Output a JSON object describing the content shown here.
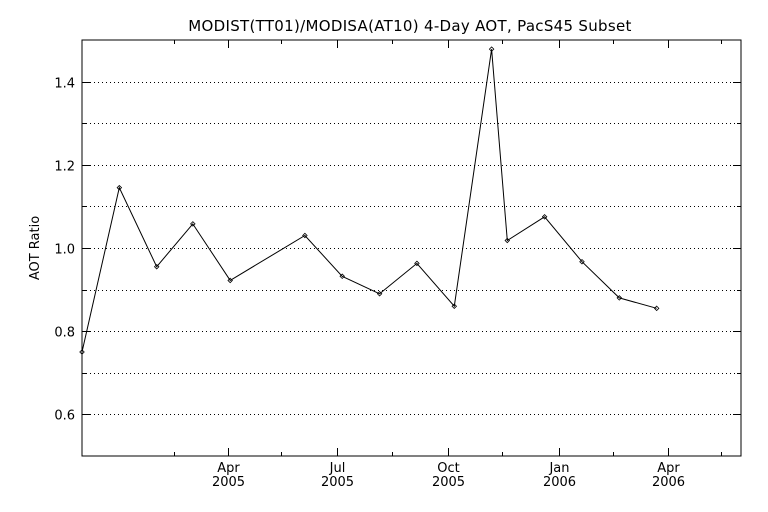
{
  "chart_data": {
    "type": "line",
    "title": "MODIST(TT01)/MODISA(AT10) 4-Day AOT, PacS45 Subset",
    "xlabel": "",
    "ylabel": "AOT Ratio",
    "xlim": [
      "2004-12-01",
      "2006-06-01"
    ],
    "ylim": [
      0.5,
      1.5
    ],
    "yticks": [
      0.6,
      0.8,
      1.0,
      1.2,
      1.4
    ],
    "ytick_labels": [
      "0.6",
      "0.8",
      "1.0",
      "1.2",
      "1.4"
    ],
    "ygrid": [
      0.6,
      0.7,
      0.8,
      0.9,
      1.0,
      1.1,
      1.2,
      1.3,
      1.4
    ],
    "grid": "horizontal dotted",
    "xticks": [
      {
        "date": "2005-04-01",
        "label": "Apr",
        "year": "2005"
      },
      {
        "date": "2005-07-01",
        "label": "Jul",
        "year": "2005"
      },
      {
        "date": "2005-10-01",
        "label": "Oct",
        "year": "2005"
      },
      {
        "date": "2006-01-01",
        "label": "Jan",
        "year": "2006"
      },
      {
        "date": "2006-04-01",
        "label": "Apr",
        "year": "2006"
      }
    ],
    "xminor": [
      "2005-02-15",
      "2005-05-15",
      "2005-08-15",
      "2005-11-15",
      "2006-02-15",
      "2006-05-15"
    ],
    "series": [
      {
        "color": "#000000",
        "marker": "diamond",
        "points": [
          {
            "x": "2004-12-01",
            "y": 0.75
          },
          {
            "x": "2005-01-01",
            "y": 1.145
          },
          {
            "x": "2005-02-01",
            "y": 0.955
          },
          {
            "x": "2005-03-03",
            "y": 1.058
          },
          {
            "x": "2005-04-03",
            "y": 0.922
          },
          {
            "x": "2005-06-04",
            "y": 1.03
          },
          {
            "x": "2005-07-05",
            "y": 0.932
          },
          {
            "x": "2005-08-05",
            "y": 0.89
          },
          {
            "x": "2005-09-05",
            "y": 0.963
          },
          {
            "x": "2005-10-06",
            "y": 0.86
          },
          {
            "x": "2005-11-06",
            "y": 1.478
          },
          {
            "x": "2005-11-19",
            "y": 1.018
          },
          {
            "x": "2005-12-20",
            "y": 1.075
          },
          {
            "x": "2006-01-20",
            "y": 0.967
          },
          {
            "x": "2006-02-20",
            "y": 0.88
          },
          {
            "x": "2006-03-23",
            "y": 0.855
          }
        ]
      }
    ]
  }
}
